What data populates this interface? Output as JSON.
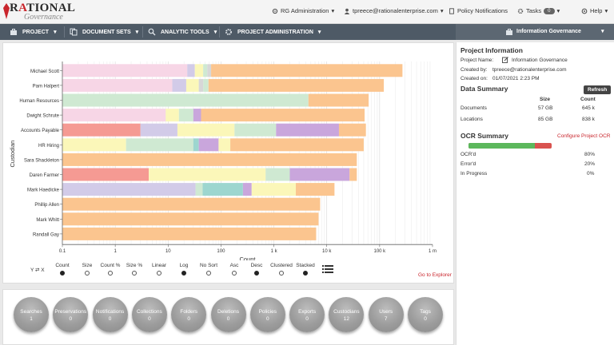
{
  "app": {
    "logo_primary": "RATIONAL",
    "logo_secondary": "Governance"
  },
  "topnav": {
    "org": "RG Administration",
    "user": "tpreece@rationalenterprise.com",
    "policy": "Policy Notifications",
    "tasks": "Tasks",
    "tasks_count": "0",
    "help": "Help"
  },
  "mainnav": {
    "project": "PROJECT",
    "document_sets": "DOCUMENT SETS",
    "analytic_tools": "ANALYTIC TOOLS",
    "project_admin": "PROJECT ADMINISTRATION",
    "current_project": "Information Governance"
  },
  "colors": {
    "pink": "#f7d6e6",
    "lavender": "#d2cbe8",
    "lightyellow": "#fbf7b9",
    "mint": "#cfe9d2",
    "orange": "#fbc58f",
    "salmon": "#f59a93",
    "purple": "#c9a6dc",
    "teal": "#9dd6cf",
    "gray": "#d7d7d7"
  },
  "chart_data": {
    "type": "bar",
    "orientation": "horizontal-stacked",
    "xscale": "log",
    "xlabel": "Count",
    "ylabel": "Custodian",
    "x_ticks": [
      "0.1",
      "1",
      "10",
      "100",
      "1 k",
      "10 k",
      "100 k",
      "1 m"
    ],
    "categories": [
      "Michael Scott",
      "Pam Halpert",
      "Human Resources",
      "Dwight Schrute",
      "Accounts Payable",
      "HR Hiring",
      "Sara Shackleton",
      "Daren Farmer",
      "Mark Haedicke",
      "Phillip Allen",
      "Mark Whitt",
      "Randall Gay"
    ],
    "rows": [
      [
        {
          "c": "pink",
          "end": 23
        },
        {
          "c": "lavender",
          "end": 32
        },
        {
          "c": "lightyellow",
          "end": 46
        },
        {
          "c": "mint",
          "end": 55
        },
        {
          "c": "gray",
          "end": 65
        },
        {
          "c": "orange",
          "end": 270000
        }
      ],
      [
        {
          "c": "pink",
          "end": 12
        },
        {
          "c": "lavender",
          "end": 22
        },
        {
          "c": "lightyellow",
          "end": 38
        },
        {
          "c": "gray",
          "end": 46
        },
        {
          "c": "mint",
          "end": 58
        },
        {
          "c": "orange",
          "end": 120000
        }
      ],
      [
        {
          "c": "mint",
          "end": 4500
        },
        {
          "c": "orange",
          "end": 62000
        }
      ],
      [
        {
          "c": "pink",
          "end": 9
        },
        {
          "c": "lightyellow",
          "end": 16
        },
        {
          "c": "mint",
          "end": 30
        },
        {
          "c": "purple",
          "end": 42
        },
        {
          "c": "orange",
          "end": 52000
        }
      ],
      [
        {
          "c": "salmon",
          "end": 3
        },
        {
          "c": "lavender",
          "end": 15
        },
        {
          "c": "lightyellow",
          "end": 180
        },
        {
          "c": "mint",
          "end": 1100
        },
        {
          "c": "purple",
          "end": 17000
        },
        {
          "c": "orange",
          "end": 55000
        }
      ],
      [
        {
          "c": "lightyellow",
          "end": 1.6
        },
        {
          "c": "mint",
          "end": 30
        },
        {
          "c": "teal",
          "end": 38
        },
        {
          "c": "purple",
          "end": 90
        },
        {
          "c": "lightyellow",
          "end": 150
        },
        {
          "c": "orange",
          "end": 50000
        }
      ],
      [
        {
          "c": "orange",
          "end": 37000
        }
      ],
      [
        {
          "c": "salmon",
          "end": 4.3
        },
        {
          "c": "lightyellow",
          "end": 700
        },
        {
          "c": "mint",
          "end": 2000
        },
        {
          "c": "purple",
          "end": 27000
        },
        {
          "c": "orange",
          "end": 37000
        }
      ],
      [
        {
          "c": "lavender",
          "end": 33
        },
        {
          "c": "mint",
          "end": 45
        },
        {
          "c": "teal",
          "end": 260
        },
        {
          "c": "purple",
          "end": 380
        },
        {
          "c": "lightyellow",
          "end": 2600
        },
        {
          "c": "orange",
          "end": 14000
        }
      ],
      [
        {
          "c": "orange",
          "end": 7500
        }
      ],
      [
        {
          "c": "orange",
          "end": 7000
        }
      ],
      [
        {
          "c": "orange",
          "end": 6300
        }
      ]
    ]
  },
  "controls": {
    "swap_axes": "Y ⇄ X",
    "options": [
      {
        "label": "Count",
        "on": true
      },
      {
        "label": "Size",
        "on": false
      },
      {
        "label": "Count %",
        "on": false
      },
      {
        "label": "Size %",
        "on": false
      },
      {
        "label": "Linear",
        "on": false
      },
      {
        "label": "Log",
        "on": true
      },
      {
        "label": "No Sort",
        "on": false
      },
      {
        "label": "Asc",
        "on": false
      },
      {
        "label": "Desc",
        "on": true
      },
      {
        "label": "Clustered",
        "on": false
      },
      {
        "label": "Stacked",
        "on": true
      }
    ],
    "go_to_explorer": "Go to Explorer"
  },
  "project_info": {
    "title": "Project Information",
    "name_label": "Project Name:",
    "name_value": "Information Governance",
    "created_by_label": "Created by:",
    "created_by_value": "tpreece@rationalenterprise.com",
    "created_on_label": "Created on:",
    "created_on_value": "01/07/2021 2:23 PM"
  },
  "data_summary": {
    "title": "Data Summary",
    "refresh": "Refresh",
    "col_size": "Size",
    "col_count": "Count",
    "rows": [
      {
        "label": "Documents",
        "size": "57 GB",
        "count": "645 k"
      },
      {
        "label": "Locations",
        "size": "85 GB",
        "count": "838 k"
      }
    ]
  },
  "ocr_summary": {
    "title": "OCR Summary",
    "configure": "Configure Project OCR",
    "ocr_fraction": 0.8,
    "rows": [
      {
        "label": "OCR'd",
        "value": "80%"
      },
      {
        "label": "Error'd",
        "value": "20%"
      },
      {
        "label": "In Progress",
        "value": "0%"
      }
    ]
  },
  "stats": [
    {
      "label": "Searches",
      "value": "1"
    },
    {
      "label": "Preservations",
      "value": "0"
    },
    {
      "label": "Notifications",
      "value": "0"
    },
    {
      "label": "Collections",
      "value": "0"
    },
    {
      "label": "Folders",
      "value": "0"
    },
    {
      "label": "Deletions",
      "value": "0"
    },
    {
      "label": "Policies",
      "value": "0"
    },
    {
      "label": "Exports",
      "value": "0"
    },
    {
      "label": "Custodians",
      "value": "12"
    },
    {
      "label": "Users",
      "value": "7"
    },
    {
      "label": "Tags",
      "value": "0"
    }
  ]
}
